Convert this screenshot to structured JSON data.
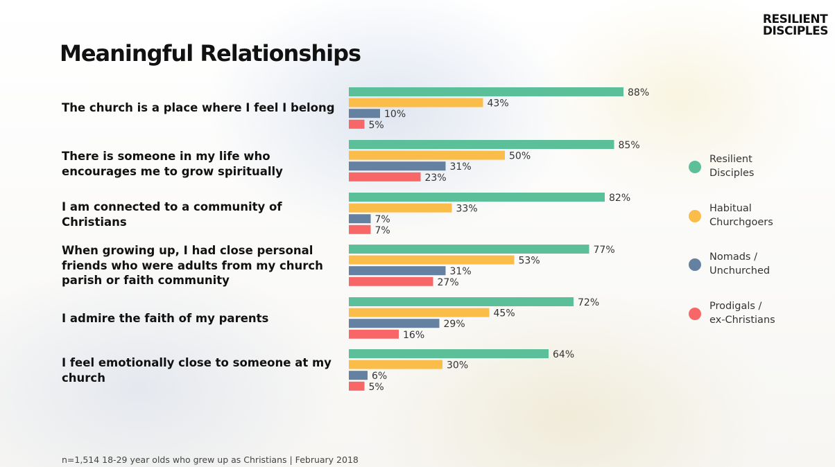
{
  "brand": {
    "line1": "RESILIENT",
    "line2": "DISCIPLES"
  },
  "title": "Meaningful Relationships",
  "footnote": "n=1,514 18-29 year olds who grew up as Christians | February 2018",
  "chart_data": {
    "type": "bar",
    "orientation": "horizontal",
    "title": "Meaningful Relationships",
    "categories": [
      "The church is a place where I feel I belong",
      "There is someone in my life who encourages me to grow spiritually",
      "I am connected to a community of Christians",
      "When growing up, I had close personal friends who were adults from my church parish or faith community",
      "I admire the faith of my parents",
      "I feel emotionally close to someone at my church"
    ],
    "series": [
      {
        "name": "Resilient Disciples",
        "color": "#5bbf9a",
        "values": [
          88,
          85,
          82,
          77,
          72,
          64
        ]
      },
      {
        "name": "Habitual Churchgoers",
        "color": "#fbbd4a",
        "values": [
          43,
          50,
          33,
          53,
          45,
          30
        ]
      },
      {
        "name": "Nomads / Unchurched",
        "color": "#6581a1",
        "values": [
          10,
          31,
          7,
          31,
          29,
          6
        ]
      },
      {
        "name": "Prodigals / ex-Christians",
        "color": "#f76767",
        "values": [
          5,
          23,
          7,
          27,
          16,
          5
        ]
      }
    ],
    "value_suffix": "%",
    "xlim": [
      0,
      100
    ],
    "grid": false,
    "legend_position": "right"
  },
  "legend": [
    {
      "label": "Resilient\nDisciples",
      "color": "#5bbf9a"
    },
    {
      "label": "Habitual\nChurchgoers",
      "color": "#fbbd4a"
    },
    {
      "label": "Nomads /\nUnchurched",
      "color": "#6581a1"
    },
    {
      "label": "Prodigals /\nex-Christians",
      "color": "#f76767"
    }
  ]
}
